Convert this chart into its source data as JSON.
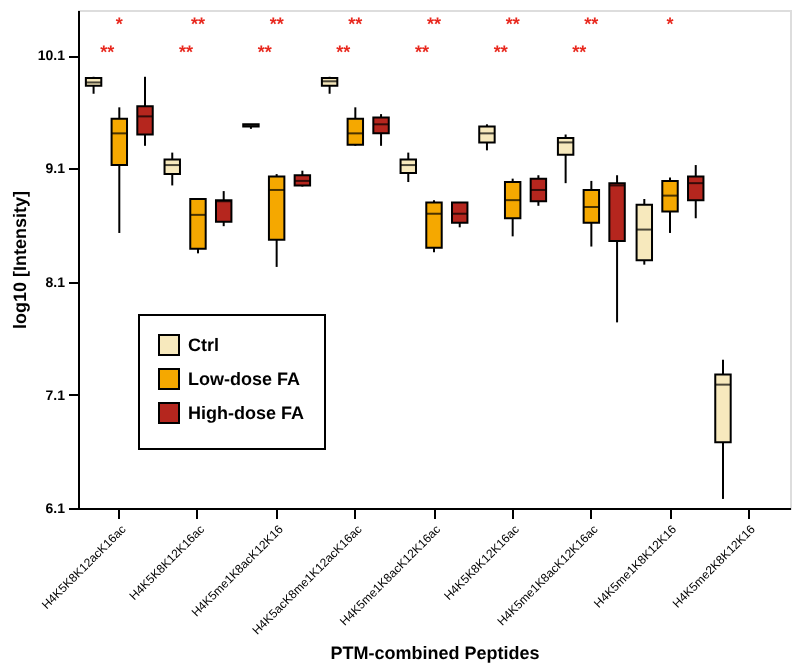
{
  "chart_data": {
    "type": "box",
    "xlabel": "PTM-combined Peptides",
    "ylabel": "log10 [Intensity]",
    "categories": [
      "H4K5K8K12acK16ac",
      "H4K5K8K12K16ac",
      "H4K5me1K8acK12K16",
      "H4K5acK8me1K12acK16ac",
      "H4K5me1K8acK12K16ac",
      "H4K5K8K12K16ac",
      "H4K5me1K8acK12K16ac",
      "H4K5me1K8K12K16",
      "H4K5me2K8K12K16"
    ],
    "ylim": [
      6.1,
      10.5
    ],
    "yticks": [
      6.1,
      7.1,
      8.1,
      9.1,
      10.1
    ],
    "grid": false,
    "legend": "bottom left",
    "series": [
      {
        "name": "Ctrl",
        "color": "#f7e9bd",
        "boxes": [
          {
            "low": 9.76,
            "q1": 9.83,
            "median": 9.86,
            "q3": 9.9,
            "high": 9.91
          },
          {
            "low": 8.95,
            "q1": 9.05,
            "median": 9.13,
            "q3": 9.18,
            "high": 9.24
          },
          {
            "low": 9.45,
            "q1": 9.47,
            "median": 9.48,
            "q3": 9.49,
            "high": 9.49
          },
          {
            "low": 9.76,
            "q1": 9.83,
            "median": 9.87,
            "q3": 9.9,
            "high": 9.91
          },
          {
            "low": 8.98,
            "q1": 9.06,
            "median": 9.13,
            "q3": 9.18,
            "high": 9.24
          },
          {
            "low": 9.26,
            "q1": 9.33,
            "median": 9.41,
            "q3": 9.47,
            "high": 9.49
          },
          {
            "low": 8.97,
            "q1": 9.22,
            "median": 9.33,
            "q3": 9.37,
            "high": 9.4
          },
          {
            "low": 8.25,
            "q1": 8.29,
            "median": 8.56,
            "q3": 8.78,
            "high": 8.83
          },
          {
            "low": 6.18,
            "q1": 6.68,
            "median": 7.19,
            "q3": 7.28,
            "high": 7.41
          }
        ]
      },
      {
        "name": "Low-dose FA",
        "color": "#f5a800",
        "boxes": [
          {
            "low": 8.53,
            "q1": 9.13,
            "median": 9.41,
            "q3": 9.54,
            "high": 9.64
          },
          {
            "low": 8.35,
            "q1": 8.39,
            "median": 8.69,
            "q3": 8.83,
            "high": 8.83
          },
          {
            "low": 8.23,
            "q1": 8.47,
            "median": 8.91,
            "q3": 9.03,
            "high": 9.05
          },
          {
            "low": 9.3,
            "q1": 9.31,
            "median": 9.41,
            "q3": 9.54,
            "high": 9.64
          },
          {
            "low": 8.36,
            "q1": 8.4,
            "median": 8.7,
            "q3": 8.8,
            "high": 8.82
          },
          {
            "low": 8.5,
            "q1": 8.66,
            "median": 8.82,
            "q3": 8.98,
            "high": 9.01
          },
          {
            "low": 8.41,
            "q1": 8.62,
            "median": 8.76,
            "q3": 8.91,
            "high": 8.99
          },
          {
            "low": 8.53,
            "q1": 8.72,
            "median": 8.86,
            "q3": 8.99,
            "high": 9.02
          },
          null
        ]
      },
      {
        "name": "High-dose FA",
        "color": "#b5261e",
        "boxes": [
          {
            "low": 9.3,
            "q1": 9.4,
            "median": 9.56,
            "q3": 9.65,
            "high": 9.91
          },
          {
            "low": 8.59,
            "q1": 8.63,
            "median": 8.81,
            "q3": 8.82,
            "high": 8.9
          },
          {
            "low": 8.94,
            "q1": 8.95,
            "median": 8.99,
            "q3": 9.04,
            "high": 9.08
          },
          {
            "low": 9.3,
            "q1": 9.41,
            "median": 9.49,
            "q3": 9.55,
            "high": 9.58
          },
          {
            "low": 8.58,
            "q1": 8.62,
            "median": 8.7,
            "q3": 8.8,
            "high": 8.8
          },
          {
            "low": 8.77,
            "q1": 8.81,
            "median": 8.91,
            "q3": 9.01,
            "high": 9.04
          },
          {
            "low": 7.74,
            "q1": 8.46,
            "median": 8.95,
            "q3": 8.97,
            "high": 9.04
          },
          {
            "low": 8.66,
            "q1": 8.82,
            "median": 8.97,
            "q3": 9.03,
            "high": 9.13
          },
          null
        ]
      }
    ],
    "annotations": [
      "*",
      "**",
      "**",
      "**",
      "**",
      "**",
      "**",
      "*",
      "**",
      "**",
      "**",
      "**",
      "**",
      "**",
      "**"
    ]
  }
}
